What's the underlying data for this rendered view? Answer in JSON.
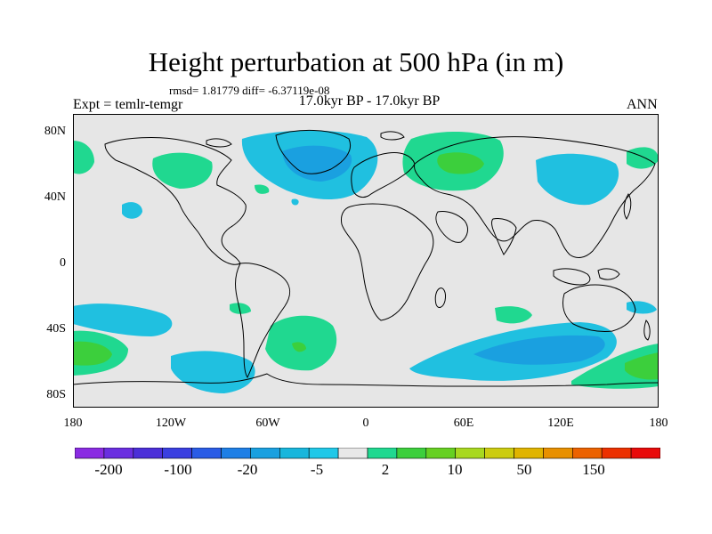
{
  "title": "Height perturbation at 500 hPa (in m)",
  "stats": "rmsd= 1.81779 diff= -6.37119e-08",
  "left_label": "Expt = temlr-temgr",
  "center_label": "17.0kyr BP - 17.0kyr BP",
  "right_label": "ANN",
  "lat_labels": [
    "80N",
    "40N",
    "0",
    "40S",
    "80S"
  ],
  "lon_labels": [
    "180",
    "120W",
    "60W",
    "0",
    "60E",
    "120E",
    "180"
  ],
  "colorbar": {
    "colors": [
      "#8a2be2",
      "#6a2ee0",
      "#4b2fd8",
      "#3a3fe0",
      "#2a5ce6",
      "#1e7fe6",
      "#1aa0e0",
      "#18b6dc",
      "#20c8e8",
      "#e8e8e8",
      "#20d890",
      "#3ccf3c",
      "#66d022",
      "#a8d820",
      "#cccc10",
      "#e0b400",
      "#e89000",
      "#ec6200",
      "#ec3000",
      "#e80a0a"
    ],
    "labels": [
      "-200",
      "-100",
      "-20",
      "-5",
      "2",
      "10",
      "50",
      "150"
    ]
  },
  "map": {
    "background": "#e6e6e6",
    "low_color": "#20c0e0",
    "low_core_color": "#1aa0e0",
    "high_color": "#20d890",
    "high_core_color": "#3ccf3c"
  }
}
